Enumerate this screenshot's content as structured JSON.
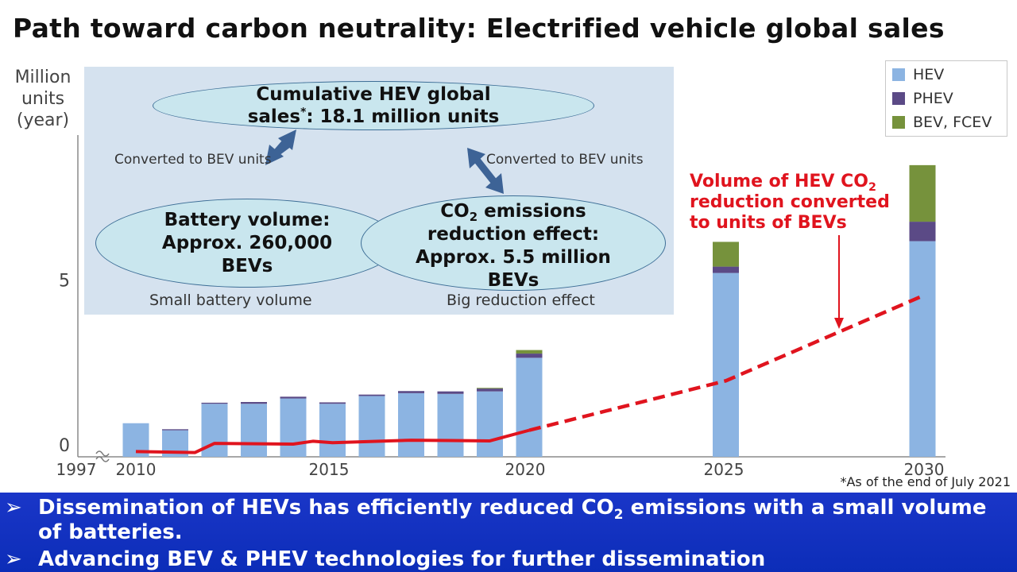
{
  "title": "Path toward carbon neutrality: Electrified vehicle global sales",
  "y_axis_label": [
    "Million",
    "units",
    "(year)"
  ],
  "legend": [
    {
      "label": "HEV",
      "color": "#8cb4e2"
    },
    {
      "label": "PHEV",
      "color": "#5b4a86"
    },
    {
      "label": "BEV, FCEV",
      "color": "#76923c"
    }
  ],
  "info_panel": {
    "top_ellipse": {
      "line1": "Cumulative HEV global",
      "line2_pre": "sales",
      "line2_sup": "*",
      "line2_post": ": 18.1 million units"
    },
    "left_ellipse": [
      "Battery volume:",
      "Approx. 260,000",
      "BEVs"
    ],
    "right_ellipse": {
      "line1_pre": "CO",
      "line1_sub": "2",
      "line1_post": " emissions",
      "line2": "reduction effect:",
      "line3": "Approx. 5.5 million",
      "line4": "BEVs"
    },
    "left_conv": "Converted to BEV units",
    "right_conv": "Converted to BEV units",
    "left_note": "Small battery volume",
    "right_note": "Big reduction effect"
  },
  "annotation": {
    "line1_pre": "Volume of HEV CO",
    "line1_sub": "2",
    "line2": "reduction converted",
    "line3": "to units of BEVs"
  },
  "footnote": "*As of the end of July 2021",
  "banner": {
    "bullet_glyph": "➢",
    "b1_line1_pre": "Dissemination of HEVs has efficiently reduced CO",
    "b1_line1_sub": "2",
    "b1_line1_post": " emissions with a small volume",
    "b1_line2": "of batteries.",
    "b2": "Advancing BEV & PHEV technologies for further dissemination"
  },
  "chart_data": {
    "type": "bar",
    "stacked": true,
    "x_tick_labels": [
      "1997",
      "2010",
      "2015",
      "2020",
      "2025",
      "2030"
    ],
    "y_tick_labels": [
      "0",
      "5"
    ],
    "ylim": [
      0,
      9.2
    ],
    "categories": [
      "2010",
      "2011",
      "2012",
      "2013",
      "2014",
      "2015",
      "2016",
      "2017",
      "2018",
      "2019",
      "2020",
      "2025",
      "2030"
    ],
    "series": [
      {
        "name": "HEV",
        "color": "#8cb4e2",
        "values": [
          0.95,
          0.75,
          1.5,
          1.5,
          1.65,
          1.5,
          1.72,
          1.8,
          1.78,
          1.85,
          2.8,
          5.2,
          6.1
        ]
      },
      {
        "name": "PHEV",
        "color": "#5b4a86",
        "values": [
          0,
          0.03,
          0.03,
          0.05,
          0.05,
          0.04,
          0.04,
          0.06,
          0.07,
          0.08,
          0.12,
          0.18,
          0.55
        ]
      },
      {
        "name": "BEV, FCEV",
        "color": "#76923c",
        "values": [
          0,
          0,
          0,
          0,
          0,
          0,
          0,
          0,
          0,
          0.02,
          0.1,
          0.7,
          1.6
        ]
      }
    ],
    "line": {
      "color": "#e0141e",
      "solid_x": [
        2010,
        2011.5,
        2012,
        2014,
        2014.5,
        2015,
        2017,
        2018,
        2019,
        2020
      ],
      "solid_y": [
        0.15,
        0.12,
        0.38,
        0.36,
        0.44,
        0.4,
        0.47,
        0.46,
        0.45,
        0.75
      ],
      "dashed_x": [
        2020,
        2025,
        2030
      ],
      "dashed_y": [
        0.75,
        2.15,
        4.55
      ]
    }
  }
}
